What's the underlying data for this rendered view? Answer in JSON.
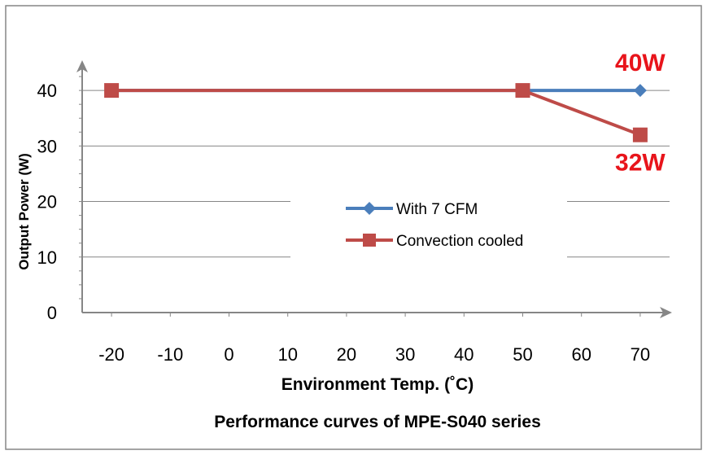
{
  "colors": {
    "series1": "#4a7ebb",
    "series2": "#be4b48",
    "annotation": "#e8141b",
    "axis": "#868686",
    "grid": "#868686"
  },
  "chart_data": {
    "type": "line",
    "title": "Performance curves of MPE-S040 series",
    "xlabel": "Environment Temp. (˚C)",
    "ylabel": "Output Power (W)",
    "xlim": [
      -25,
      75
    ],
    "ylim": [
      0,
      45
    ],
    "xticks": [
      "-20",
      "-10",
      "0",
      "10",
      "20",
      "30",
      "40",
      "50",
      "60",
      "70"
    ],
    "yticks": [
      "0",
      "10",
      "20",
      "30",
      "40"
    ],
    "grid": true,
    "legend": "center",
    "series": [
      {
        "name": "With 7 CFM",
        "marker": "diamond",
        "x": [
          -20,
          50,
          70
        ],
        "y": [
          40,
          40,
          40
        ]
      },
      {
        "name": "Convection cooled",
        "marker": "square",
        "x": [
          -20,
          50,
          70
        ],
        "y": [
          40,
          40,
          32
        ]
      }
    ],
    "annotations": [
      {
        "text": "40W",
        "x": 70,
        "y": 40
      },
      {
        "text": "32W",
        "x": 70,
        "y": 32
      }
    ]
  }
}
